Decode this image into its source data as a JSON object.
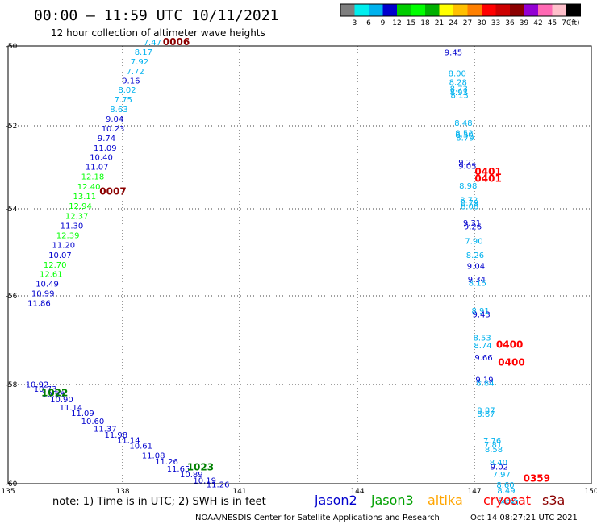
{
  "page_title": "00:00 – 11:59 UTC 10/11/2021",
  "subtitle": "12 hour collection of altimeter wave heights",
  "note_text": "note: 1) Time is in UTC; 2) SWH is in feet",
  "credit_text": "NOAA/NESDIS Center for Satellite Applications and Research",
  "timestamp_text": "Oct 14 08:27:21 UTC 2021",
  "colorbar": {
    "labels": [
      "3",
      "6",
      "9",
      "12",
      "15",
      "18",
      "21",
      "24",
      "27",
      "30",
      "33",
      "36",
      "39",
      "42",
      "45",
      "70"
    ],
    "unit": "(ft)",
    "colors": [
      "#7f7f7f",
      "#00eeee",
      "#00b2ee",
      "#0000cd",
      "#00cd00",
      "#00ff00",
      "#00b000",
      "#ffff00",
      "#ffc000",
      "#ff8000",
      "#ff0000",
      "#cd0000",
      "#8b0000",
      "#9400d3",
      "#ff69b4",
      "#ffc0cb",
      "#000000"
    ]
  },
  "legend": [
    {
      "name": "jason2",
      "color": "#0000cd"
    },
    {
      "name": "jason3",
      "color": "#00a000"
    },
    {
      "name": "altika",
      "color": "#ffa500"
    },
    {
      "name": "cryosat",
      "color": "#ff0000"
    },
    {
      "name": "s3a",
      "color": "#8b0000"
    }
  ],
  "chart_data": {
    "type": "scatter",
    "xlim": [
      135,
      150
    ],
    "ylim": [
      -60,
      -50
    ],
    "xticks": [
      "135",
      "138",
      "141",
      "144",
      "147",
      "150"
    ],
    "yticks": [
      "-50",
      "-52",
      "-54",
      "-56",
      "-58",
      "-60"
    ],
    "grid": true,
    "pass_labels": [
      {
        "text": "0006",
        "x": 138.98,
        "y": -49.98,
        "color": "#8b0000"
      },
      {
        "text": "0007",
        "x": 137.35,
        "y": -53.4,
        "color": "#8b0000"
      },
      {
        "text": "1022",
        "x": 135.85,
        "y": -58.0,
        "color": "#008000"
      },
      {
        "text": "1023",
        "x": 139.6,
        "y": -59.7,
        "color": "#008000"
      },
      {
        "text": "0401",
        "x": 147.0,
        "y": -52.95,
        "color": "#ff0000"
      },
      {
        "text": "0401",
        "x": 147.0,
        "y": -53.1,
        "color": "#ff0000"
      },
      {
        "text": "0400",
        "x": 147.55,
        "y": -56.9,
        "color": "#ff0000"
      },
      {
        "text": "0400",
        "x": 147.6,
        "y": -57.3,
        "color": "#ff0000"
      },
      {
        "text": "0359",
        "x": 148.25,
        "y": -59.95,
        "color": "#ff0000"
      }
    ],
    "points": [
      {
        "x": 138.48,
        "y": -49.98,
        "v": "7.47",
        "c": "#00b2ee"
      },
      {
        "x": 138.25,
        "y": -50.2,
        "v": "8.17",
        "c": "#00b2ee"
      },
      {
        "x": 138.15,
        "y": -50.42,
        "v": "7.92",
        "c": "#00b2ee"
      },
      {
        "x": 138.04,
        "y": -50.64,
        "v": "7.72",
        "c": "#00b2ee"
      },
      {
        "x": 137.93,
        "y": -50.86,
        "v": "9.16",
        "c": "#0000cd"
      },
      {
        "x": 137.83,
        "y": -51.07,
        "v": "8.02",
        "c": "#00b2ee"
      },
      {
        "x": 137.73,
        "y": -51.29,
        "v": "7.75",
        "c": "#00b2ee"
      },
      {
        "x": 137.62,
        "y": -51.51,
        "v": "8.63",
        "c": "#00b2ee"
      },
      {
        "x": 137.51,
        "y": -51.73,
        "v": "9.04",
        "c": "#0000cd"
      },
      {
        "x": 137.4,
        "y": -51.95,
        "v": "10.23",
        "c": "#0000cd"
      },
      {
        "x": 137.3,
        "y": -52.17,
        "v": "9.74",
        "c": "#0000cd"
      },
      {
        "x": 137.2,
        "y": -52.39,
        "v": "11.09",
        "c": "#0000cd"
      },
      {
        "x": 137.1,
        "y": -52.61,
        "v": "10.40",
        "c": "#0000cd"
      },
      {
        "x": 136.99,
        "y": -52.83,
        "v": "11.07",
        "c": "#0000cd"
      },
      {
        "x": 136.88,
        "y": -53.05,
        "v": "12.18",
        "c": "#00ff00"
      },
      {
        "x": 136.78,
        "y": -53.28,
        "v": "12.40",
        "c": "#00ff00"
      },
      {
        "x": 136.67,
        "y": -53.5,
        "v": "13.11",
        "c": "#00ff00"
      },
      {
        "x": 136.56,
        "y": -53.72,
        "v": "12.94",
        "c": "#00ff00"
      },
      {
        "x": 136.47,
        "y": -53.95,
        "v": "12.37",
        "c": "#00ff00"
      },
      {
        "x": 136.34,
        "y": -54.17,
        "v": "11.30",
        "c": "#0000cd"
      },
      {
        "x": 136.24,
        "y": -54.39,
        "v": "12.39",
        "c": "#00ff00"
      },
      {
        "x": 136.13,
        "y": -54.61,
        "v": "11.20",
        "c": "#0000cd"
      },
      {
        "x": 136.04,
        "y": -54.84,
        "v": "10.07",
        "c": "#0000cd"
      },
      {
        "x": 135.91,
        "y": -55.06,
        "v": "12.70",
        "c": "#00ff00"
      },
      {
        "x": 135.81,
        "y": -55.28,
        "v": "12.61",
        "c": "#00ff00"
      },
      {
        "x": 135.71,
        "y": -55.5,
        "v": "10.49",
        "c": "#0000cd"
      },
      {
        "x": 135.6,
        "y": -55.72,
        "v": "10.99",
        "c": "#0000cd"
      },
      {
        "x": 135.5,
        "y": -55.94,
        "v": "11.86",
        "c": "#0000cd"
      },
      {
        "x": 135.45,
        "y": -57.8,
        "v": "10.92",
        "c": "#0000cd"
      },
      {
        "x": 135.66,
        "y": -57.9,
        "v": "10.73",
        "c": "#0000cd"
      },
      {
        "x": 135.87,
        "y": -58.02,
        "v": "10.98",
        "c": "#0000cd"
      },
      {
        "x": 136.08,
        "y": -58.14,
        "v": "10.90",
        "c": "#0000cd"
      },
      {
        "x": 136.32,
        "y": -58.32,
        "v": "11.14",
        "c": "#0000cd"
      },
      {
        "x": 136.62,
        "y": -58.45,
        "v": "11.09",
        "c": "#0000cd"
      },
      {
        "x": 136.88,
        "y": -58.64,
        "v": "10.60",
        "c": "#0000cd"
      },
      {
        "x": 137.2,
        "y": -58.81,
        "v": "11.37",
        "c": "#0000cd"
      },
      {
        "x": 137.48,
        "y": -58.95,
        "v": "11.98",
        "c": "#0000cd"
      },
      {
        "x": 137.8,
        "y": -59.07,
        "v": "11.14",
        "c": "#0000cd"
      },
      {
        "x": 138.12,
        "y": -59.2,
        "v": "10.61",
        "c": "#0000cd"
      },
      {
        "x": 138.44,
        "y": -59.42,
        "v": "11.08",
        "c": "#0000cd"
      },
      {
        "x": 138.78,
        "y": -59.56,
        "v": "11.26",
        "c": "#0000cd"
      },
      {
        "x": 139.08,
        "y": -59.72,
        "v": "11.65",
        "c": "#0000cd"
      },
      {
        "x": 139.42,
        "y": -59.85,
        "v": "10.89",
        "c": "#0000cd"
      },
      {
        "x": 139.76,
        "y": -59.99,
        "v": "10.19",
        "c": "#0000cd"
      },
      {
        "x": 140.1,
        "y": -60.08,
        "v": "11.26",
        "c": "#0000cd"
      },
      {
        "x": 146.22,
        "y": -50.21,
        "v": "9.45",
        "c": "#0000cd"
      },
      {
        "x": 146.32,
        "y": -50.69,
        "v": "8.00",
        "c": "#00b2ee"
      },
      {
        "x": 146.34,
        "y": -50.89,
        "v": "8.28",
        "c": "#00b2ee"
      },
      {
        "x": 146.36,
        "y": -51.04,
        "v": "8.73",
        "c": "#00b2ee"
      },
      {
        "x": 146.36,
        "y": -51.12,
        "v": "8.93",
        "c": "#00b2ee"
      },
      {
        "x": 146.38,
        "y": -51.19,
        "v": "8.13",
        "c": "#00b2ee"
      },
      {
        "x": 146.48,
        "y": -51.82,
        "v": "8.48",
        "c": "#00b2ee"
      },
      {
        "x": 146.5,
        "y": -52.05,
        "v": "8.52",
        "c": "#00b2ee"
      },
      {
        "x": 146.5,
        "y": -52.09,
        "v": "8.50",
        "c": "#00b2ee"
      },
      {
        "x": 146.52,
        "y": -52.16,
        "v": "8.79",
        "c": "#00b2ee"
      },
      {
        "x": 146.58,
        "y": -52.73,
        "v": "9.21",
        "c": "#0000cd"
      },
      {
        "x": 146.58,
        "y": -52.81,
        "v": "9.05",
        "c": "#0000cd"
      },
      {
        "x": 146.6,
        "y": -53.26,
        "v": "8.98",
        "c": "#00b2ee"
      },
      {
        "x": 146.62,
        "y": -53.58,
        "v": "8.72",
        "c": "#00b2ee"
      },
      {
        "x": 146.64,
        "y": -53.65,
        "v": "8.79",
        "c": "#00b2ee"
      },
      {
        "x": 146.64,
        "y": -53.73,
        "v": "8.08",
        "c": "#00b2ee"
      },
      {
        "x": 146.7,
        "y": -54.11,
        "v": "9.31",
        "c": "#0000cd"
      },
      {
        "x": 146.72,
        "y": -54.19,
        "v": "9.26",
        "c": "#0000cd"
      },
      {
        "x": 146.75,
        "y": -54.52,
        "v": "7.90",
        "c": "#00b2ee"
      },
      {
        "x": 146.78,
        "y": -54.84,
        "v": "8.26",
        "c": "#00b2ee"
      },
      {
        "x": 146.8,
        "y": -55.09,
        "v": "9.04",
        "c": "#0000cd"
      },
      {
        "x": 146.82,
        "y": -55.4,
        "v": "9.34",
        "c": "#0000cd"
      },
      {
        "x": 146.84,
        "y": -55.48,
        "v": "8.15",
        "c": "#00b2ee"
      },
      {
        "x": 146.92,
        "y": -56.11,
        "v": "8.91",
        "c": "#00b2ee"
      },
      {
        "x": 146.94,
        "y": -56.2,
        "v": "9.43",
        "c": "#0000cd"
      },
      {
        "x": 146.96,
        "y": -56.73,
        "v": "8.53",
        "c": "#00b2ee"
      },
      {
        "x": 146.98,
        "y": -56.91,
        "v": "8.74",
        "c": "#00b2ee"
      },
      {
        "x": 147.0,
        "y": -57.18,
        "v": "9.66",
        "c": "#0000cd"
      },
      {
        "x": 147.02,
        "y": -57.69,
        "v": "9.19",
        "c": "#0000cd"
      },
      {
        "x": 147.04,
        "y": -57.76,
        "v": "8.84",
        "c": "#00b2ee"
      },
      {
        "x": 147.06,
        "y": -58.39,
        "v": "8.87",
        "c": "#00b2ee"
      },
      {
        "x": 147.06,
        "y": -58.47,
        "v": "8.67",
        "c": "#00b2ee"
      },
      {
        "x": 147.22,
        "y": -59.08,
        "v": "7.76",
        "c": "#00b2ee"
      },
      {
        "x": 147.24,
        "y": -59.17,
        "v": "7.81",
        "c": "#00b2ee"
      },
      {
        "x": 147.26,
        "y": -59.28,
        "v": "8.58",
        "c": "#00b2ee"
      },
      {
        "x": 147.38,
        "y": -59.58,
        "v": "8.40",
        "c": "#00b2ee"
      },
      {
        "x": 147.4,
        "y": -59.68,
        "v": "9.02",
        "c": "#0000cd"
      },
      {
        "x": 147.46,
        "y": -59.85,
        "v": "7.97",
        "c": "#00b2ee"
      },
      {
        "x": 147.56,
        "y": -60.09,
        "v": "8.60",
        "c": "#00b2ee"
      },
      {
        "x": 147.58,
        "y": -60.22,
        "v": "8.49",
        "c": "#00b2ee"
      },
      {
        "x": 147.6,
        "y": -60.45,
        "v": "8.52",
        "c": "#00b2ee"
      },
      {
        "x": 147.7,
        "y": -60.5,
        "v": "8.31",
        "c": "#00b2ee"
      }
    ]
  }
}
